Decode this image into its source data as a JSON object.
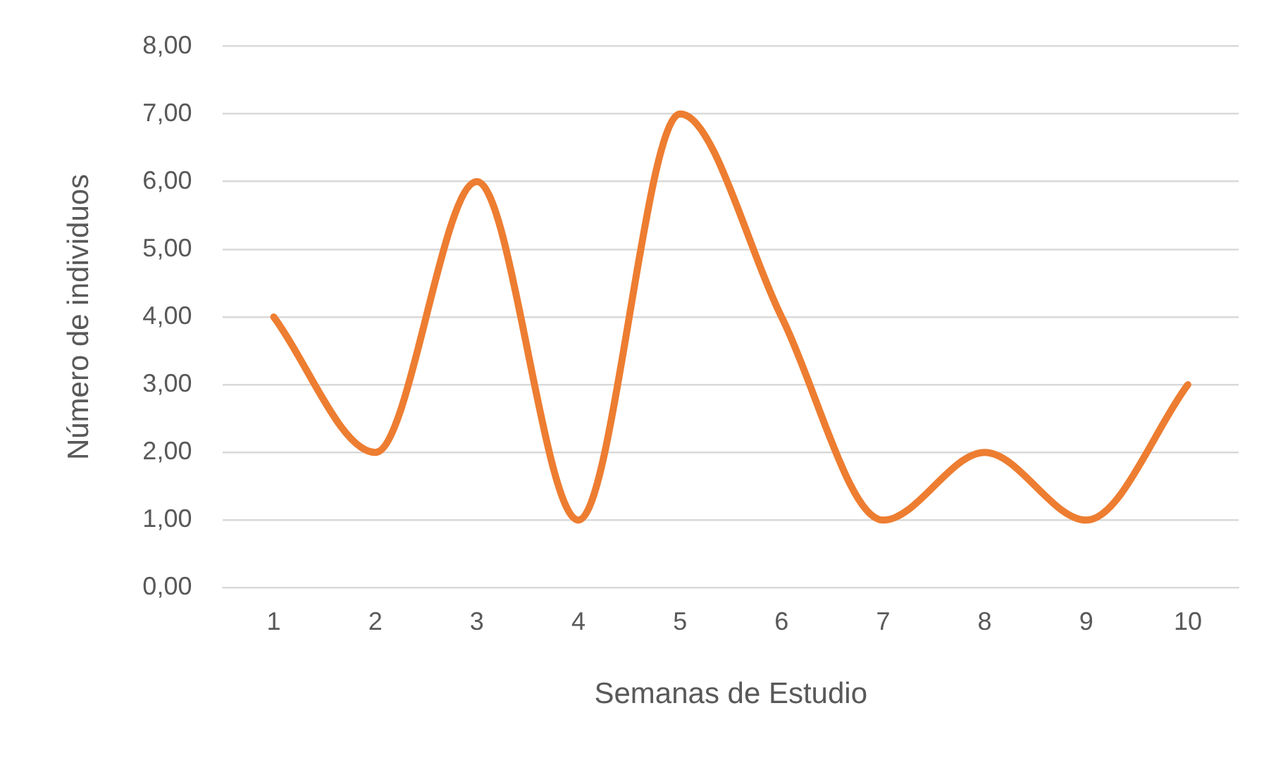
{
  "chart_data": {
    "type": "line",
    "xlabel": "Semanas de Estudio",
    "ylabel": "Número de individuos",
    "categories": [
      "1",
      "2",
      "3",
      "4",
      "5",
      "6",
      "7",
      "8",
      "9",
      "10"
    ],
    "series": [
      {
        "color": "#ed7d31",
        "values": [
          4,
          2,
          6,
          1,
          7,
          4,
          1,
          2,
          1,
          3
        ]
      }
    ],
    "ylim": [
      0,
      8
    ],
    "yticks": [
      {
        "value": 0,
        "label": "0,00"
      },
      {
        "value": 1,
        "label": "1,00"
      },
      {
        "value": 2,
        "label": "2,00"
      },
      {
        "value": 3,
        "label": "3,00"
      },
      {
        "value": 4,
        "label": "4,00"
      },
      {
        "value": 5,
        "label": "5,00"
      },
      {
        "value": 6,
        "label": "6,00"
      },
      {
        "value": 7,
        "label": "7,00"
      },
      {
        "value": 8,
        "label": "8,00"
      }
    ],
    "grid": "y",
    "legend": false,
    "marker": "none",
    "line_style": "solid"
  }
}
